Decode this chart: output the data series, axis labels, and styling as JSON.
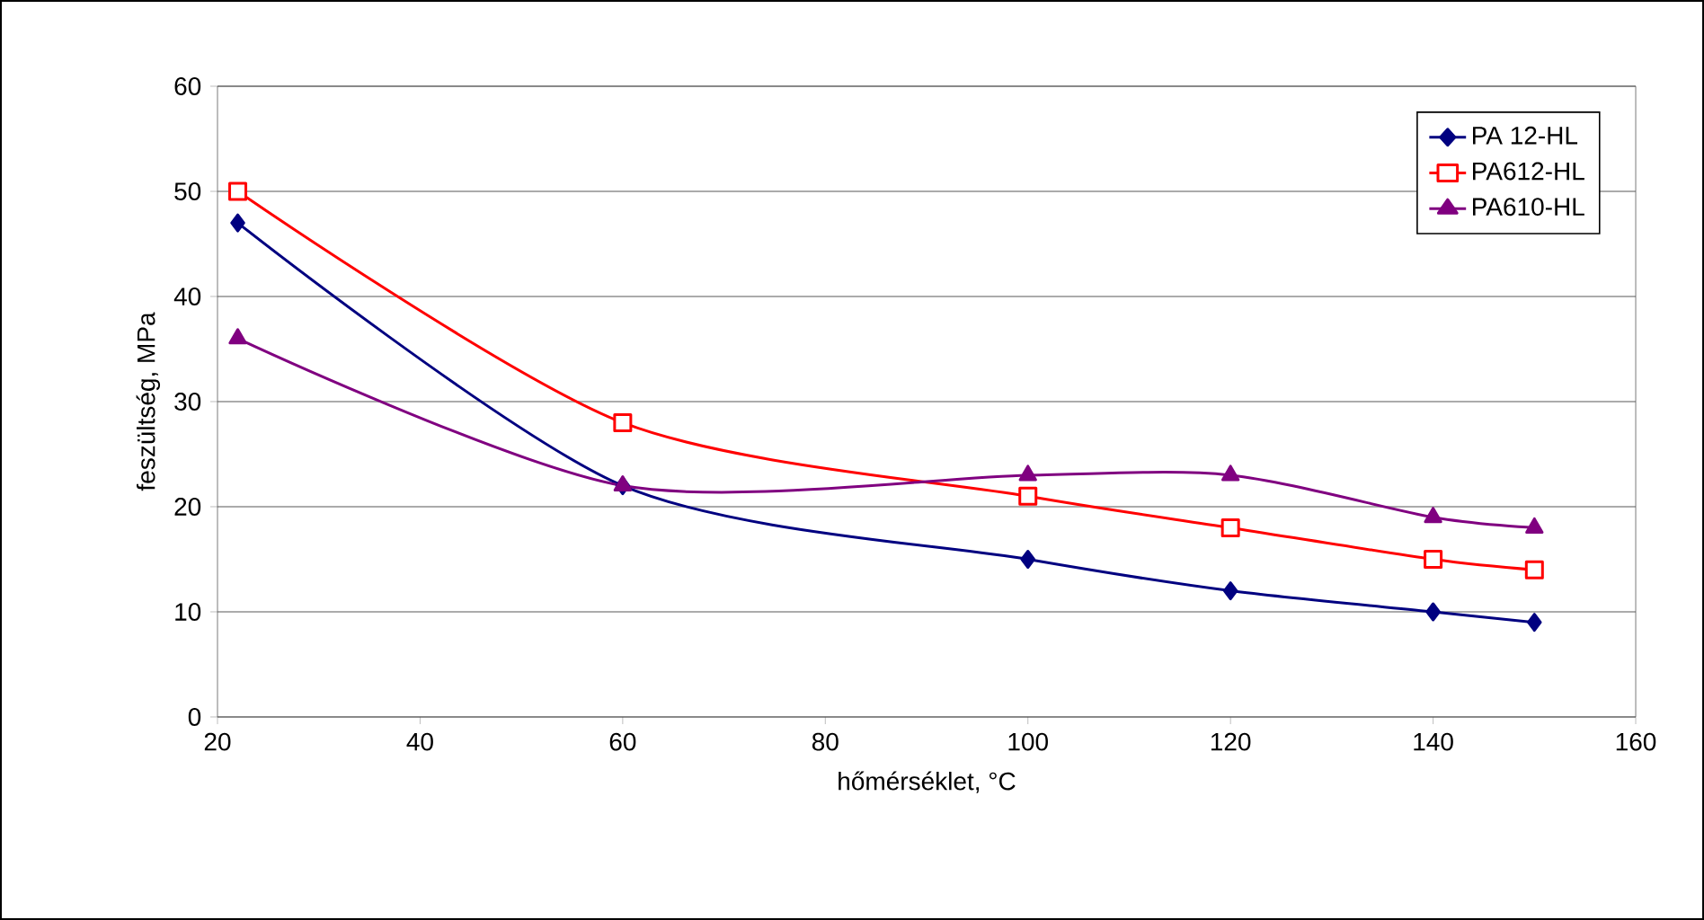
{
  "chart_data": {
    "type": "line",
    "xlabel": "hőmérséklet, °C",
    "ylabel": "feszültség, MPa",
    "x": [
      22,
      60,
      100,
      120,
      140,
      150
    ],
    "series": [
      {
        "name": "PA 12-HL",
        "color": "#000080",
        "marker": "diamond",
        "values": [
          47,
          22,
          15,
          12,
          10,
          9
        ]
      },
      {
        "name": "PA612-HL",
        "color": "#ff0000",
        "marker": "square",
        "values": [
          50,
          28,
          21,
          18,
          15,
          14
        ]
      },
      {
        "name": "PA610-HL",
        "color": "#800080",
        "marker": "triangle",
        "values": [
          36,
          22,
          23,
          23,
          19,
          18
        ]
      }
    ],
    "xlim": [
      20,
      160
    ],
    "xticks": [
      20,
      40,
      60,
      80,
      100,
      120,
      140,
      160
    ],
    "ylim": [
      0,
      60
    ],
    "yticks": [
      0,
      10,
      20,
      30,
      40,
      50,
      60
    ],
    "grid": "y",
    "legend": "top right",
    "line_style": "solid"
  }
}
